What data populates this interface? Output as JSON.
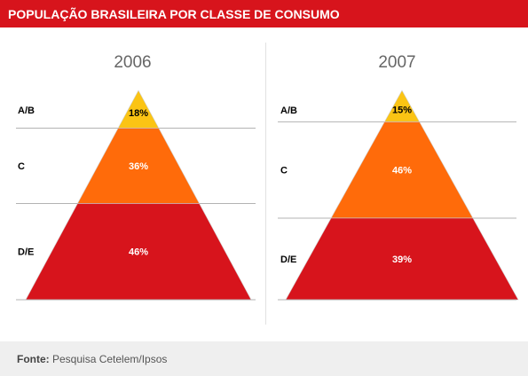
{
  "header": {
    "title": "POPULAÇÃO BRASILEIRA POR CLASSE DE CONSUMO"
  },
  "colors": {
    "header_bg": "#d7141c",
    "class_ab": "#fbc414",
    "class_c": "#ff6b0a",
    "class_de": "#d7141c",
    "footer_bg": "#efefef"
  },
  "chart_data": [
    {
      "type": "pyramid",
      "title": "2006",
      "categories": [
        "A/B",
        "C",
        "D/E"
      ],
      "values": [
        18,
        36,
        46
      ],
      "value_labels": [
        "18%",
        "36%",
        "46%"
      ],
      "unit": "%"
    },
    {
      "type": "pyramid",
      "title": "2007",
      "categories": [
        "A/B",
        "C",
        "D/E"
      ],
      "values": [
        15,
        46,
        39
      ],
      "value_labels": [
        "15%",
        "46%",
        "39%"
      ],
      "unit": "%"
    }
  ],
  "footer": {
    "source_label": "Fonte:",
    "source_text": "Pesquisa Cetelem/Ipsos"
  }
}
